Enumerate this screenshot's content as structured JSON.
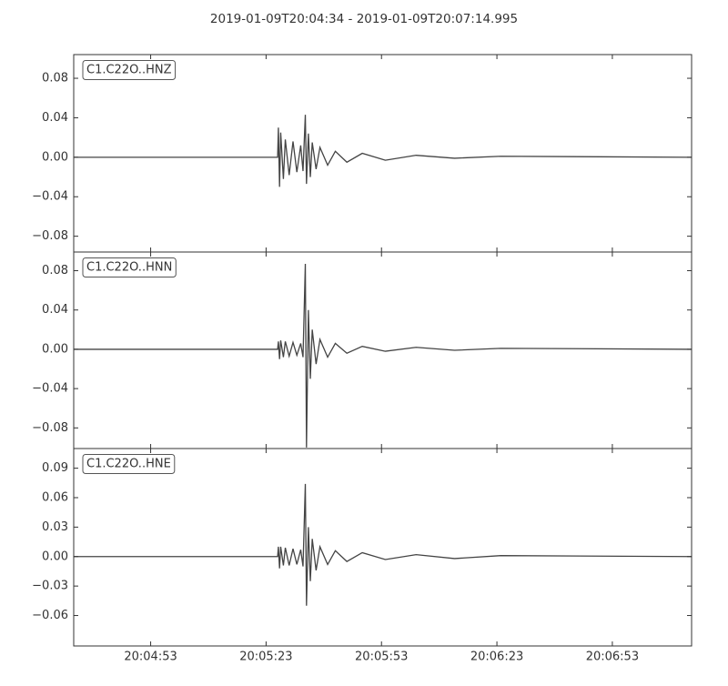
{
  "title": "2019-01-09T20:04:34  -  2019-01-09T20:07:14.995",
  "chart_data": [
    {
      "type": "line",
      "xlim": [
        -1,
        159.6
      ],
      "ylim": [
        -0.096,
        0.104
      ],
      "yticks": [
        {
          "value": -0.08,
          "label": "−0.08"
        },
        {
          "value": -0.04,
          "label": "−0.04"
        },
        {
          "value": 0,
          "label": "0.00"
        },
        0.04,
        0.08
      ],
      "x": [
        -1,
        52,
        52.2,
        52.5,
        52.8,
        53.5,
        54,
        55,
        56,
        57,
        58,
        58.6,
        59.2,
        59.5,
        60,
        60.5,
        61,
        62,
        63,
        65,
        67,
        70,
        74,
        80,
        88,
        98,
        110,
        159.6
      ],
      "series": [
        {
          "name": "C1.C22O..HNZ",
          "color": "#444444",
          "values": [
            0,
            0,
            0.03,
            -0.03,
            0.025,
            -0.022,
            0.018,
            -0.018,
            0.016,
            -0.015,
            0.012,
            -0.014,
            0.043,
            -0.027,
            0.024,
            -0.02,
            0.015,
            -0.012,
            0.01,
            -0.008,
            0.006,
            -0.005,
            0.004,
            -0.003,
            0.002,
            -0.001,
            0.001,
            0
          ]
        }
      ]
    },
    {
      "type": "line",
      "xlim": [
        -1,
        159.6
      ],
      "ylim": [
        -0.101,
        0.099
      ],
      "yticks": [
        {
          "value": -0.08,
          "label": "−0.08"
        },
        {
          "value": -0.04,
          "label": "−0.04"
        },
        {
          "value": 0,
          "label": "0.00"
        },
        0.04,
        0.08
      ],
      "x": [
        -1,
        52,
        52.2,
        52.5,
        52.8,
        53.5,
        54,
        55,
        56,
        57,
        58,
        58.6,
        59.2,
        59.5,
        60,
        60.5,
        61,
        62,
        63,
        65,
        67,
        70,
        74,
        80,
        88,
        98,
        110,
        159.6
      ],
      "series": [
        {
          "name": "C1.C22O..HNN",
          "color": "#444444",
          "values": [
            0,
            0,
            0.008,
            -0.01,
            0.009,
            -0.008,
            0.008,
            -0.007,
            0.007,
            -0.006,
            0.006,
            -0.008,
            0.087,
            -0.1,
            0.04,
            -0.03,
            0.02,
            -0.015,
            0.01,
            -0.008,
            0.006,
            -0.004,
            0.003,
            -0.002,
            0.002,
            -0.001,
            0.001,
            0
          ]
        }
      ]
    },
    {
      "type": "line",
      "xlim": [
        -1,
        159.6
      ],
      "ylim": [
        -0.091,
        0.11
      ],
      "yticks": [
        {
          "value": -0.06,
          "label": "−0.06"
        },
        {
          "value": -0.03,
          "label": "−0.03"
        },
        {
          "value": 0,
          "label": "0.00"
        },
        0.03,
        0.06,
        0.09
      ],
      "xticks": [
        {
          "value": 19,
          "label": "20:04:53"
        },
        {
          "value": 49,
          "label": "20:05:23"
        },
        {
          "value": 79,
          "label": "20:05:53"
        },
        {
          "value": 109,
          "label": "20:06:23"
        },
        {
          "value": 139,
          "label": "20:06:53"
        }
      ],
      "x": [
        -1,
        52,
        52.2,
        52.5,
        52.8,
        53.5,
        54,
        55,
        56,
        57,
        58,
        58.6,
        59.2,
        59.5,
        60,
        60.5,
        61,
        62,
        63,
        65,
        67,
        70,
        74,
        80,
        88,
        98,
        110,
        159.6
      ],
      "series": [
        {
          "name": "C1.C22O..HNE",
          "color": "#444444",
          "values": [
            0,
            0,
            0.01,
            -0.012,
            0.01,
            -0.009,
            0.009,
            -0.009,
            0.008,
            -0.008,
            0.007,
            -0.01,
            0.074,
            -0.05,
            0.03,
            -0.025,
            0.018,
            -0.014,
            0.01,
            -0.008,
            0.006,
            -0.005,
            0.004,
            -0.003,
            0.002,
            -0.002,
            0.001,
            0
          ]
        }
      ]
    }
  ]
}
